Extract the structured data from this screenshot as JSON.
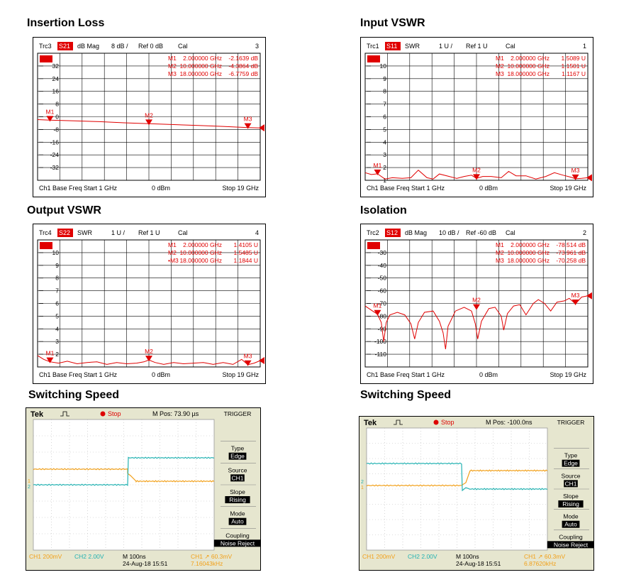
{
  "colors": {
    "trace": "#e00000",
    "scope_bg": "#e6e6cf",
    "ch1": "#f2a019",
    "ch2": "#23b2b2",
    "scope_text": "#000000"
  },
  "vna_panels": [
    {
      "title": "Insertion Loss",
      "hdr": {
        "trc": "Trc3",
        "s": "S21",
        "fmt": "dB Mag",
        "scale": "8 dB /",
        "ref": "Ref 0 dB",
        "cal": "Cal",
        "num": "3"
      },
      "tick_labels": [
        "32",
        "24",
        "16",
        "8",
        "0",
        "-8",
        "-16",
        "-24",
        "-32"
      ],
      "markers": [
        {
          "name": "M1",
          "freq": "2.000000 GHz",
          "val": "-2.1639 dB"
        },
        {
          "name": "M2",
          "freq": "10.000000 GHz",
          "val": "-4.3864 dB"
        },
        {
          "name": "M3",
          "freq": "18.000000 GHz",
          "val": "-6.7759 dB"
        }
      ],
      "footer": {
        "left": "Ch1  Base Freq  Start  1 GHz",
        "power": "0 dBm",
        "right": "Stop  19 GHz"
      }
    },
    {
      "title": "Input VSWR",
      "hdr": {
        "trc": "Trc1",
        "s": "S11",
        "fmt": "SWR",
        "scale": "1 U /",
        "ref": "Ref 1 U",
        "cal": "Cal",
        "num": "1"
      },
      "tick_labels": [
        "10",
        "9",
        "8",
        "7",
        "6",
        "5",
        "4",
        "3",
        "2",
        "1"
      ],
      "markers": [
        {
          "name": "M1",
          "freq": "2.000000 GHz",
          "val": "1.5089 U"
        },
        {
          "name": "M2",
          "freq": "10.000000 GHz",
          "val": "1.1501 U"
        },
        {
          "name": "M3",
          "freq": "18.000000 GHz",
          "val": "1.1167 U"
        }
      ],
      "footer": {
        "left": "Ch1  Base Freq  Start  1 GHz",
        "power": "0 dBm",
        "right": "Stop  19 GHz"
      }
    },
    {
      "title": "Output VSWR",
      "hdr": {
        "trc": "Trc4",
        "s": "S22",
        "fmt": "SWR",
        "scale": "1 U /",
        "ref": "Ref 1 U",
        "cal": "Cal",
        "num": "4"
      },
      "tick_labels": [
        "10",
        "9",
        "8",
        "7",
        "6",
        "5",
        "4",
        "3",
        "2"
      ],
      "markers": [
        {
          "name": "M1",
          "freq": "2.000000 GHz",
          "val": "1.4105 U"
        },
        {
          "name": "M2",
          "freq": "10.000000 GHz",
          "val": "1.5485 U"
        },
        {
          "name": "•M3",
          "freq": "18.000000 GHz",
          "val": "1.1844 U"
        }
      ],
      "footer": {
        "left": "Ch1  Base Freq  Start  1 GHz",
        "power": "0 dBm",
        "right": "Stop  19 GHz"
      }
    },
    {
      "title": "Isolation",
      "hdr": {
        "trc": "Trc2",
        "s": "S12",
        "fmt": "dB Mag",
        "scale": "10 dB /",
        "ref": "Ref -60 dB",
        "cal": "Cal",
        "num": "2"
      },
      "tick_labels": [
        "-30",
        "-40",
        "-50",
        "-60",
        "-70",
        "-80",
        "-90",
        "-100",
        "-110"
      ],
      "markers": [
        {
          "name": "M1",
          "freq": "2.000000 GHz",
          "val": "-78.514 dB"
        },
        {
          "name": "M2",
          "freq": "10.000000 GHz",
          "val": "-73.961 dB"
        },
        {
          "name": "M3",
          "freq": "18.000000 GHz",
          "val": "-70.258 dB"
        }
      ],
      "footer": {
        "left": "Ch1  Base Freq  Start  1 GHz",
        "power": "0 dBm",
        "right": "Stop  19 GHz"
      }
    }
  ],
  "scope_panels": [
    {
      "title": "Switching Speed",
      "brand": "Tek",
      "state": "Stop",
      "mpos": "M Pos: 73.90 µs",
      "menu": [
        {
          "label": "TRIGGER",
          "value": ""
        },
        {
          "label": "Type",
          "value": "Edge"
        },
        {
          "label": "Source",
          "value": "CH1"
        },
        {
          "label": "Slope",
          "value": "Rising"
        },
        {
          "label": "Mode",
          "value": "Auto"
        },
        {
          "label": "Coupling",
          "value": "Noise Reject"
        }
      ],
      "status": {
        "ch1": "CH1  200mV",
        "ch2": "CH2  2.00V",
        "time": "M 100ns",
        "date": "24-Aug-18 15:51",
        "trig": "CH1 ↗ 60.3mV",
        "freq": "7.16043kHz"
      }
    },
    {
      "title": "Switching Speed",
      "brand": "Tek",
      "state": "Stop",
      "mpos": "M Pos: -100.0ns",
      "menu": [
        {
          "label": "TRIGGER",
          "value": ""
        },
        {
          "label": "Type",
          "value": "Edge"
        },
        {
          "label": "Source",
          "value": "CH1"
        },
        {
          "label": "Slope",
          "value": "Rising"
        },
        {
          "label": "Mode",
          "value": "Auto"
        },
        {
          "label": "Coupling",
          "value": "Noise Reject"
        }
      ],
      "status": {
        "ch1": "CH1  200mV",
        "ch2": "CH2  2.00V",
        "time": "M 100ns",
        "date": "24-Aug-18 15:51",
        "trig": "CH1 ↗ 60.3mV",
        "freq": "6.87620kHz"
      }
    }
  ],
  "chart_data": [
    {
      "type": "line",
      "title": "Insertion Loss",
      "xlim": [
        1,
        19
      ],
      "ylim": [
        -40,
        40
      ],
      "grid": true,
      "x": [
        1,
        2,
        4,
        6,
        8,
        10,
        12,
        14,
        16,
        18,
        19
      ],
      "series": [
        {
          "name": "S21",
          "values": [
            -1.8,
            -2.16,
            -2.6,
            -3.1,
            -3.8,
            -4.39,
            -4.9,
            -5.5,
            -6.1,
            -6.78,
            -7.0
          ]
        }
      ],
      "markers": [
        {
          "name": "M1",
          "x": 2,
          "y": -2.1639
        },
        {
          "name": "M2",
          "x": 10,
          "y": -4.3864
        },
        {
          "name": "M3",
          "x": 18,
          "y": -6.7759
        }
      ]
    },
    {
      "type": "line",
      "title": "Input VSWR",
      "xlim": [
        1,
        19
      ],
      "ylim": [
        1,
        11
      ],
      "grid": true,
      "x": [
        1,
        1.5,
        2,
        2.6,
        3.2,
        4,
        4.7,
        5.3,
        6,
        6.5,
        7,
        7.8,
        8.4,
        9,
        9.6,
        10,
        10.5,
        11.2,
        12,
        12.6,
        13.2,
        14,
        14.8,
        15.6,
        16.3,
        17,
        17.6,
        18,
        18.5,
        19
      ],
      "series": [
        {
          "name": "S11",
          "values": [
            1.6,
            1.45,
            1.51,
            1.1,
            1.2,
            1.15,
            1.2,
            1.8,
            1.2,
            1.1,
            1.5,
            1.3,
            1.15,
            1.3,
            1.4,
            1.15,
            1.3,
            1.3,
            1.2,
            1.7,
            1.35,
            1.35,
            1.1,
            1.3,
            1.6,
            1.4,
            1.25,
            1.12,
            1.15,
            1.2
          ]
        }
      ],
      "markers": [
        {
          "name": "M1",
          "x": 2,
          "y": 1.5089
        },
        {
          "name": "M2",
          "x": 10,
          "y": 1.1501
        },
        {
          "name": "M3",
          "x": 18,
          "y": 1.1167
        }
      ]
    },
    {
      "type": "line",
      "title": "Output VSWR",
      "xlim": [
        1,
        19
      ],
      "ylim": [
        1,
        11
      ],
      "grid": true,
      "x": [
        1,
        1.5,
        2,
        2.7,
        3.4,
        4.2,
        5,
        5.8,
        6.6,
        7.4,
        8.2,
        9,
        9.6,
        10,
        10.5,
        11.2,
        12,
        12.8,
        13.6,
        14.4,
        15.2,
        16,
        16.8,
        17.5,
        18,
        18.5,
        19
      ],
      "series": [
        {
          "name": "S22",
          "values": [
            1.9,
            1.6,
            1.41,
            1.3,
            1.45,
            1.25,
            1.35,
            1.4,
            1.2,
            1.35,
            1.25,
            1.3,
            1.4,
            1.55,
            1.35,
            1.2,
            1.35,
            1.25,
            1.3,
            1.35,
            1.2,
            1.35,
            1.2,
            1.6,
            1.18,
            1.3,
            1.5
          ]
        }
      ],
      "markers": [
        {
          "name": "M1",
          "x": 2,
          "y": 1.4105
        },
        {
          "name": "M2",
          "x": 10,
          "y": 1.5485
        },
        {
          "name": "M3",
          "x": 18,
          "y": 1.1844
        }
      ]
    },
    {
      "type": "line",
      "title": "Isolation",
      "xlim": [
        1,
        19
      ],
      "ylim": [
        -120,
        -20
      ],
      "grid": true,
      "x": [
        1,
        1.6,
        2,
        2.3,
        2.5,
        2.7,
        3,
        3.6,
        4.2,
        4.7,
        5,
        5.3,
        5.8,
        6.5,
        7,
        7.3,
        7.5,
        7.7,
        8.3,
        9,
        9.6,
        9.9,
        10.1,
        10.4,
        11,
        11.5,
        12,
        12.2,
        12.5,
        13,
        13.5,
        14,
        14.6,
        15,
        15.5,
        16,
        16.5,
        17.1,
        17.5,
        18,
        18.5,
        19
      ],
      "series": [
        {
          "name": "S12",
          "values": [
            -72,
            -76,
            -78.5,
            -85,
            -100,
            -85,
            -79,
            -77,
            -79,
            -86,
            -98,
            -85,
            -77,
            -76,
            -84,
            -93,
            -106,
            -88,
            -76,
            -73,
            -76,
            -86,
            -98,
            -84,
            -74,
            -73,
            -80,
            -91,
            -78,
            -72,
            -71,
            -79,
            -70,
            -67,
            -70,
            -76,
            -69,
            -68,
            -66,
            -70.3,
            -65,
            -64
          ]
        }
      ],
      "markers": [
        {
          "name": "M1",
          "x": 2,
          "y": -78.514
        },
        {
          "name": "M2",
          "x": 10,
          "y": -73.961
        },
        {
          "name": "M3",
          "x": 18,
          "y": -70.258
        }
      ]
    }
  ]
}
